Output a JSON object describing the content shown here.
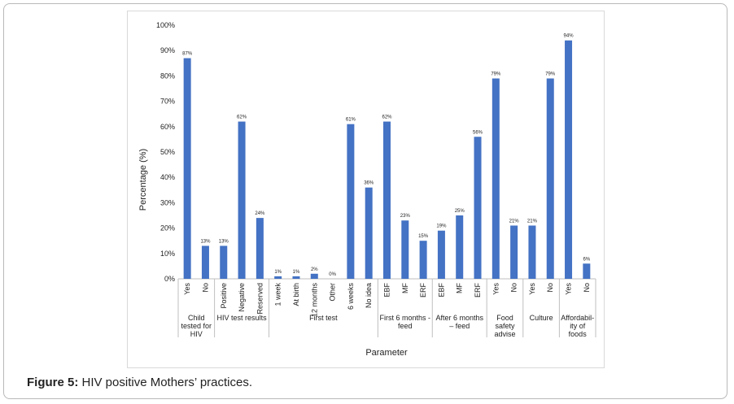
{
  "figure": {
    "caption_prefix": "Figure 5:",
    "caption_text": " HIV positive Mothers’ practices."
  },
  "chart_data": {
    "type": "bar",
    "xlabel": "Parameter",
    "ylabel": "Percentage (%)",
    "ylim": [
      0,
      100
    ],
    "yticks": [
      "0%",
      "10%",
      "20%",
      "30%",
      "40%",
      "50%",
      "60%",
      "70%",
      "80%",
      "90%",
      "100%"
    ],
    "grid": false,
    "bar_color": "#4472c4",
    "categories": [
      "Yes",
      "No",
      "Positive",
      "Negative",
      "Reserved",
      "1 week",
      "At birth",
      "12 months",
      "Other",
      "6 weeks",
      "No idea",
      "EBF",
      "MF",
      "ERF",
      "EBF",
      "MF",
      "ERF",
      "Yes",
      "No",
      "Yes",
      "No",
      "Yes",
      "No"
    ],
    "values": [
      87,
      13,
      13,
      62,
      24,
      1,
      1,
      2,
      0,
      61,
      36,
      62,
      23,
      15,
      19,
      25,
      56,
      79,
      21,
      21,
      79,
      94,
      6
    ],
    "data_labels": [
      "87%",
      "13%",
      "13%",
      "62%",
      "24%",
      "1%",
      "1%",
      "2%",
      "0%",
      "61%",
      "36%",
      "62%",
      "23%",
      "15%",
      "19%",
      "25%",
      "56%",
      "79%",
      "21%",
      "21%",
      "79%",
      "94%",
      "6%"
    ],
    "groups": [
      {
        "lines": [
          "Child",
          "tested for",
          "HIV"
        ],
        "start": 0,
        "end": 1
      },
      {
        "lines": [
          "HIV test results"
        ],
        "start": 2,
        "end": 4
      },
      {
        "lines": [
          "First test"
        ],
        "start": 5,
        "end": 10
      },
      {
        "lines": [
          "First 6 months -",
          "feed"
        ],
        "start": 11,
        "end": 13
      },
      {
        "lines": [
          "After 6 months",
          "– feed"
        ],
        "start": 14,
        "end": 16
      },
      {
        "lines": [
          "Food",
          "safety",
          "advise"
        ],
        "start": 17,
        "end": 18
      },
      {
        "lines": [
          "Culture"
        ],
        "start": 19,
        "end": 20
      },
      {
        "lines": [
          "Affordabil-",
          "ity of",
          "foods"
        ],
        "start": 21,
        "end": 22
      }
    ]
  }
}
